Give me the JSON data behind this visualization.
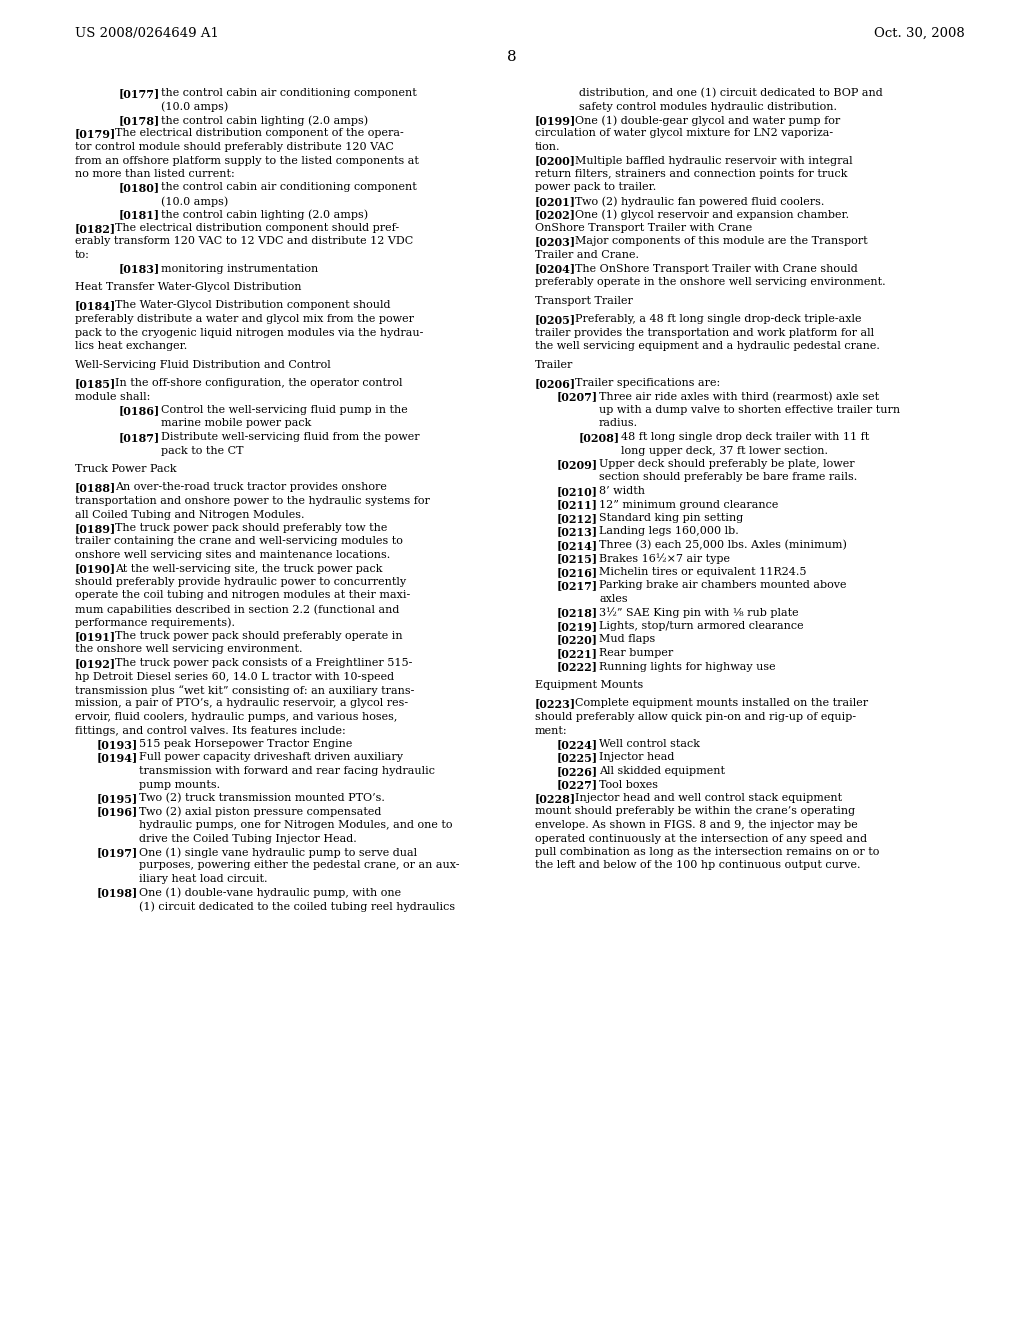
{
  "header_left": "US 2008/0264649 A1",
  "header_right": "Oct. 30, 2008",
  "page_number": "8",
  "background_color": "#ffffff",
  "text_color": "#000000",
  "left_column": [
    {
      "type": "indent2",
      "tag": "[0177]",
      "text": "the control cabin air conditioning component\n(10.0 amps)"
    },
    {
      "type": "indent2",
      "tag": "[0178]",
      "text": "the control cabin lighting (2.0 amps)"
    },
    {
      "type": "para",
      "tag": "[0179]",
      "text": "The electrical distribution component of the opera-\ntor control module should preferably distribute 120 VAC\nfrom an offshore platform supply to the listed components at\nno more than listed current:"
    },
    {
      "type": "indent2",
      "tag": "[0180]",
      "text": "the control cabin air conditioning component\n(10.0 amps)"
    },
    {
      "type": "indent2",
      "tag": "[0181]",
      "text": "the control cabin lighting (2.0 amps)"
    },
    {
      "type": "para",
      "tag": "[0182]",
      "text": "The electrical distribution component should pref-\nerably transform 120 VAC to 12 VDC and distribute 12 VDC\nto:"
    },
    {
      "type": "indent2",
      "tag": "[0183]",
      "text": "monitoring instrumentation"
    },
    {
      "type": "blank"
    },
    {
      "type": "heading",
      "text": "Heat Transfer Water-Glycol Distribution"
    },
    {
      "type": "blank"
    },
    {
      "type": "para",
      "tag": "[0184]",
      "text": "The Water-Glycol Distribution component should\npreferably distribute a water and glycol mix from the power\npack to the cryogenic liquid nitrogen modules via the hydrau-\nlics heat exchanger."
    },
    {
      "type": "blank"
    },
    {
      "type": "heading",
      "text": "Well-Servicing Fluid Distribution and Control"
    },
    {
      "type": "blank"
    },
    {
      "type": "para",
      "tag": "[0185]",
      "text": "In the off-shore configuration, the operator control\nmodule shall:"
    },
    {
      "type": "indent2",
      "tag": "[0186]",
      "text": "Control the well-servicing fluid pump in the\nmarine mobile power pack"
    },
    {
      "type": "indent2",
      "tag": "[0187]",
      "text": "Distribute well-servicing fluid from the power\npack to the CT"
    },
    {
      "type": "blank"
    },
    {
      "type": "heading",
      "text": "Truck Power Pack"
    },
    {
      "type": "blank"
    },
    {
      "type": "para",
      "tag": "[0188]",
      "text": "An over-the-road truck tractor provides onshore\ntransportation and onshore power to the hydraulic systems for\nall Coiled Tubing and Nitrogen Modules."
    },
    {
      "type": "para",
      "tag": "[0189]",
      "text": "The truck power pack should preferably tow the\ntrailer containing the crane and well-servicing modules to\nonshore well servicing sites and maintenance locations."
    },
    {
      "type": "para",
      "tag": "[0190]",
      "text": "At the well-servicing site, the truck power pack\nshould preferably provide hydraulic power to concurrently\noperate the coil tubing and nitrogen modules at their maxi-\nmum capabilities described in section 2.2 (functional and\nperformance requirements)."
    },
    {
      "type": "para",
      "tag": "[0191]",
      "text": "The truck power pack should preferably operate in\nthe onshore well servicing environment."
    },
    {
      "type": "para",
      "tag": "[0192]",
      "text": "The truck power pack consists of a Freightliner 515-\nhp Detroit Diesel series 60, 14.0 L tractor with 10-speed\ntransmission plus “wet kit” consisting of: an auxiliary trans-\nmission, a pair of PTO’s, a hydraulic reservoir, a glycol res-\nervoir, fluid coolers, hydraulic pumps, and various hoses,\nfittings, and control valves. Its features include:"
    },
    {
      "type": "indent1",
      "tag": "[0193]",
      "text": "515 peak Horsepower Tractor Engine"
    },
    {
      "type": "indent1",
      "tag": "[0194]",
      "text": "Full power capacity driveshaft driven auxiliary\ntransmission with forward and rear facing hydraulic\npump mounts."
    },
    {
      "type": "indent1",
      "tag": "[0195]",
      "text": "Two (2) truck transmission mounted PTO’s."
    },
    {
      "type": "indent1",
      "tag": "[0196]",
      "text": "Two (2) axial piston pressure compensated\nhydraulic pumps, one for Nitrogen Modules, and one to\ndrive the Coiled Tubing Injector Head."
    },
    {
      "type": "indent1",
      "tag": "[0197]",
      "text": "One (1) single vane hydraulic pump to serve dual\npurposes, powering either the pedestal crane, or an aux-\niliary heat load circuit."
    },
    {
      "type": "indent1",
      "tag": "[0198]",
      "text": "One (1) double-vane hydraulic pump, with one\n(1) circuit dedicated to the coiled tubing reel hydraulics"
    }
  ],
  "right_column": [
    {
      "type": "cont2",
      "text": "distribution, and one (1) circuit dedicated to BOP and\nsafety control modules hydraulic distribution."
    },
    {
      "type": "para",
      "tag": "[0199]",
      "text": "One (1) double-gear glycol and water pump for\ncirculation of water glycol mixture for LN2 vaporiza-\ntion."
    },
    {
      "type": "para",
      "tag": "[0200]",
      "text": "Multiple baffled hydraulic reservoir with integral\nreturn filters, strainers and connection points for truck\npower pack to trailer."
    },
    {
      "type": "para",
      "tag": "[0201]",
      "text": "Two (2) hydraulic fan powered fluid coolers."
    },
    {
      "type": "para",
      "tag": "[0202]",
      "text": "One (1) glycol reservoir and expansion chamber."
    },
    {
      "type": "heading",
      "text": "OnShore Transport Trailer with Crane"
    },
    {
      "type": "para",
      "tag": "[0203]",
      "text": "Major components of this module are the Transport\nTrailer and Crane."
    },
    {
      "type": "para",
      "tag": "[0204]",
      "text": "The OnShore Transport Trailer with Crane should\npreferably operate in the onshore well servicing environment."
    },
    {
      "type": "blank"
    },
    {
      "type": "heading",
      "text": "Transport Trailer"
    },
    {
      "type": "blank"
    },
    {
      "type": "para",
      "tag": "[0205]",
      "text": "Preferably, a 48 ft long single drop-deck triple-axle\ntrailer provides the transportation and work platform for all\nthe well servicing equipment and a hydraulic pedestal crane."
    },
    {
      "type": "blank"
    },
    {
      "type": "heading",
      "text": "Trailer"
    },
    {
      "type": "blank"
    },
    {
      "type": "para",
      "tag": "[0206]",
      "text": "Trailer specifications are:"
    },
    {
      "type": "indent1",
      "tag": "[0207]",
      "text": "Three air ride axles with third (rearmost) axle set\nup with a dump valve to shorten effective trailer turn\nradius."
    },
    {
      "type": "indent2",
      "tag": "[0208]",
      "text": "48 ft long single drop deck trailer with 11 ft\nlong upper deck, 37 ft lower section."
    },
    {
      "type": "indent1",
      "tag": "[0209]",
      "text": "Upper deck should preferably be plate, lower\nsection should preferably be bare frame rails."
    },
    {
      "type": "indent1",
      "tag": "[0210]",
      "text": "8’ width"
    },
    {
      "type": "indent1",
      "tag": "[0211]",
      "text": "12” minimum ground clearance"
    },
    {
      "type": "indent1",
      "tag": "[0212]",
      "text": "Standard king pin setting"
    },
    {
      "type": "indent1",
      "tag": "[0213]",
      "text": "Landing legs 160,000 lb."
    },
    {
      "type": "indent1",
      "tag": "[0214]",
      "text": "Three (3) each 25,000 lbs. Axles (minimum)"
    },
    {
      "type": "indent1",
      "tag": "[0215]",
      "text": "Brakes 16½×7 air type"
    },
    {
      "type": "indent1",
      "tag": "[0216]",
      "text": "Michelin tires or equivalent 11R24.5"
    },
    {
      "type": "indent1",
      "tag": "[0217]",
      "text": "Parking brake air chambers mounted above\naxles"
    },
    {
      "type": "indent1",
      "tag": "[0218]",
      "text": "3½” SAE King pin with ⅛ rub plate"
    },
    {
      "type": "indent1",
      "tag": "[0219]",
      "text": "Lights, stop/turn armored clearance"
    },
    {
      "type": "indent1",
      "tag": "[0220]",
      "text": "Mud flaps"
    },
    {
      "type": "indent1",
      "tag": "[0221]",
      "text": "Rear bumper"
    },
    {
      "type": "indent1",
      "tag": "[0222]",
      "text": "Running lights for highway use"
    },
    {
      "type": "blank"
    },
    {
      "type": "heading",
      "text": "Equipment Mounts"
    },
    {
      "type": "blank"
    },
    {
      "type": "para",
      "tag": "[0223]",
      "text": "Complete equipment mounts installed on the trailer\nshould preferably allow quick pin-on and rig-up of equip-\nment:"
    },
    {
      "type": "indent1",
      "tag": "[0224]",
      "text": "Well control stack"
    },
    {
      "type": "indent1",
      "tag": "[0225]",
      "text": "Injector head"
    },
    {
      "type": "indent1",
      "tag": "[0226]",
      "text": "All skidded equipment"
    },
    {
      "type": "indent1",
      "tag": "[0227]",
      "text": "Tool boxes"
    },
    {
      "type": "para",
      "tag": "[0228]",
      "text": "Injector head and well control stack equipment\nmount should preferably be within the crane’s operating\nenvelope. As shown in FIGS. 8 and 9, the injector may be\noperated continuously at the intersection of any speed and\npull combination as long as the intersection remains on or to\nthe left and below of the 100 hp continuous output curve."
    }
  ]
}
